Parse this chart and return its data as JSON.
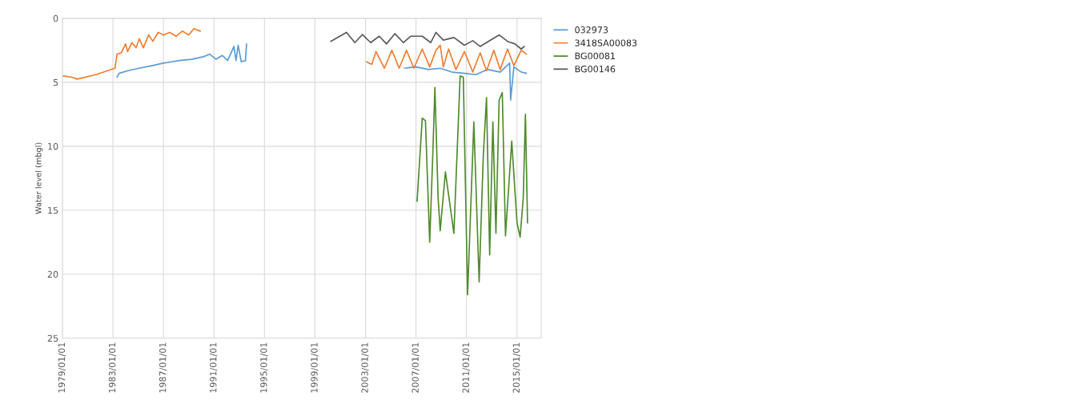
{
  "chart_data": {
    "type": "line",
    "ylabel": "Water level (mbgl)",
    "ylim": [
      25,
      0
    ],
    "yticks": [
      0,
      5,
      10,
      15,
      20,
      25
    ],
    "xlim": [
      "1979-01-01",
      "2016-12-01"
    ],
    "xticks": [
      {
        "value": "1979-01-01",
        "label": "1979/01/01"
      },
      {
        "value": "1983-01-01",
        "label": "1983/01/01"
      },
      {
        "value": "1987-01-01",
        "label": "1987/01/01"
      },
      {
        "value": "1991-01-01",
        "label": "1991/01/01"
      },
      {
        "value": "1995-01-01",
        "label": "1995/01/01"
      },
      {
        "value": "1999-01-01",
        "label": "1999/01/01"
      },
      {
        "value": "2003-01-01",
        "label": "2003/01/01"
      },
      {
        "value": "2007-01-01",
        "label": "2007/01/01"
      },
      {
        "value": "2011-01-01",
        "label": "2011/01/01"
      },
      {
        "value": "2015-01-01",
        "label": "2015/01/01"
      }
    ],
    "grid": true,
    "legend": "right",
    "marker": "none",
    "line_style": "solid",
    "series": [
      {
        "name": "032973",
        "color": "#5b9bd5",
        "x": [
          "1983-05",
          "1983-07",
          "1984-03",
          "1985-02",
          "1986-02",
          "1987-01",
          "1987-09",
          "1988-04",
          "1989-04",
          "1990-03",
          "1990-09",
          "1991-03",
          "1991-09",
          "1992-02",
          "1992-08",
          "1992-10",
          "1992-12",
          "1993-03",
          "1993-07",
          "1993-08",
          "2000-01",
          "2006-02",
          "2007-01",
          "2008-01",
          "2008-12",
          "2009-11",
          "2010-11",
          "2011-10",
          "2012-09",
          "2013-09",
          "2014-06",
          "2014-07",
          "2014-10",
          "2015-05",
          "2015-10"
        ],
        "values": [
          4.6,
          4.3,
          4.1,
          3.9,
          3.7,
          3.5,
          3.4,
          3.3,
          3.2,
          3.0,
          2.8,
          3.2,
          2.9,
          3.3,
          2.2,
          3.3,
          2.1,
          3.4,
          3.3,
          2.0,
          null,
          3.9,
          3.8,
          4.0,
          3.9,
          4.2,
          4.3,
          4.4,
          4.0,
          4.2,
          3.5,
          6.4,
          3.8,
          4.2,
          4.3
        ]
      },
      {
        "name": "3418SA00083",
        "color": "#ed7d31",
        "x": [
          "1979-01",
          "1979-10",
          "1980-03",
          "1981-09",
          "1983-03",
          "1983-05",
          "1983-09",
          "1984-01",
          "1984-03",
          "1984-07",
          "1984-11",
          "1985-02",
          "1985-06",
          "1985-11",
          "1986-03",
          "1986-08",
          "1987-01",
          "1987-07",
          "1988-01",
          "1988-07",
          "1989-01",
          "1989-06",
          "1989-12",
          "1995-01",
          "2003-02",
          "2003-07",
          "2003-11",
          "2004-07",
          "2005-02",
          "2005-09",
          "2006-04",
          "2006-11",
          "2007-07",
          "2008-02",
          "2008-08",
          "2008-12",
          "2009-03",
          "2009-08",
          "2010-03",
          "2010-11",
          "2011-07",
          "2012-02",
          "2012-08",
          "2013-03",
          "2013-09",
          "2014-04",
          "2014-10",
          "2015-05",
          "2015-10"
        ],
        "values": [
          4.5,
          4.6,
          4.75,
          4.4,
          3.9,
          2.8,
          2.7,
          2.0,
          2.6,
          1.9,
          2.3,
          1.6,
          2.3,
          1.3,
          1.8,
          1.1,
          1.3,
          1.1,
          1.4,
          1.0,
          1.3,
          0.8,
          1.0,
          null,
          3.4,
          3.6,
          2.6,
          3.9,
          2.5,
          3.9,
          2.5,
          3.9,
          2.4,
          3.8,
          2.5,
          2.1,
          3.8,
          2.4,
          4.0,
          2.6,
          4.2,
          2.7,
          4.1,
          2.5,
          4.0,
          2.4,
          3.7,
          2.5,
          2.8
        ]
      },
      {
        "name": "BG00081",
        "color": "#4f8a2b",
        "x": [
          "2007-02",
          "2007-07",
          "2007-10",
          "2008-02",
          "2008-05",
          "2008-07",
          "2008-10",
          "2008-12",
          "2009-05",
          "2010-01",
          "2010-07",
          "2010-10",
          "2011-02",
          "2011-08",
          "2012-01",
          "2012-05",
          "2012-08",
          "2012-11",
          "2013-02",
          "2013-05",
          "2013-08",
          "2013-11",
          "2014-02",
          "2014-08",
          "2015-01",
          "2015-04",
          "2015-07",
          "2015-09",
          "2015-11"
        ],
        "values": [
          14.3,
          7.8,
          8.0,
          17.5,
          10.6,
          5.4,
          14.0,
          16.6,
          12.0,
          16.8,
          4.5,
          4.6,
          21.6,
          8.1,
          20.6,
          10.7,
          6.2,
          18.5,
          8.1,
          16.8,
          6.4,
          5.8,
          17.0,
          9.6,
          16.0,
          17.1,
          14.0,
          7.5,
          16.0
        ]
      },
      {
        "name": "BG00146",
        "color": "#595959",
        "x": [
          "2000-04",
          "2001-07",
          "2002-03",
          "2002-10",
          "2003-06",
          "2004-02",
          "2004-09",
          "2005-05",
          "2006-01",
          "2006-08",
          "2007-07",
          "2008-03",
          "2008-08",
          "2009-03",
          "2010-01",
          "2010-11",
          "2011-07",
          "2012-02",
          "2012-12",
          "2013-08",
          "2014-04",
          "2014-11",
          "2015-05",
          "2015-08"
        ],
        "values": [
          1.8,
          1.1,
          1.9,
          1.27,
          1.9,
          1.4,
          2.0,
          1.2,
          1.9,
          1.4,
          1.4,
          1.9,
          1.1,
          1.7,
          1.5,
          2.1,
          1.75,
          2.2,
          1.7,
          1.3,
          1.8,
          2.0,
          2.4,
          2.2
        ]
      }
    ]
  }
}
